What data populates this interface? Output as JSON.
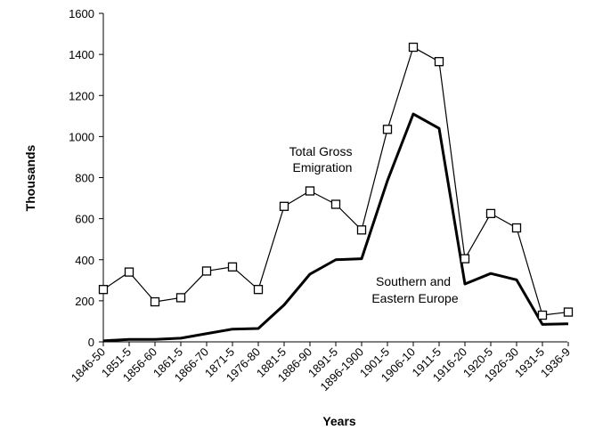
{
  "chart_data": {
    "type": "line",
    "xlabel": "Years",
    "ylabel": "Thousands",
    "ylim": [
      0,
      1600
    ],
    "yticks": [
      "0",
      "200",
      "400",
      "600",
      "800",
      "1000",
      "1200",
      "1400",
      "1600"
    ],
    "grid": false,
    "categories": [
      "1846-50",
      "1851-5",
      "1856-60",
      "1861-5",
      "1866-70",
      "1871-5",
      "1976-80",
      "1881-5",
      "1886-90",
      "1891-5",
      "1896-1900",
      "1901-5",
      "1906-10",
      "1911-5",
      "1916-20",
      "1920-5",
      "1926-30",
      "1931-5",
      "1936-9"
    ],
    "series": [
      {
        "name": "Total Gross Emigration",
        "values": [
          255,
          340,
          195,
          215,
          345,
          365,
          255,
          660,
          735,
          670,
          545,
          1035,
          1435,
          1365,
          405,
          625,
          555,
          130,
          145
        ],
        "marker": "open-square",
        "color": "#000000"
      },
      {
        "name": "Southern and Eastern Europe",
        "values": [
          5,
          12,
          12,
          18,
          40,
          62,
          65,
          180,
          330,
          400,
          405,
          785,
          1110,
          1040,
          282,
          333,
          302,
          85,
          88
        ],
        "marker": "none",
        "color": "#000000"
      }
    ],
    "annotations": [
      {
        "series": 0,
        "lines": [
          "Total Gross",
          "Emigration"
        ]
      },
      {
        "series": 1,
        "lines": [
          "Southern and",
          "Eastern Europe"
        ]
      }
    ]
  }
}
